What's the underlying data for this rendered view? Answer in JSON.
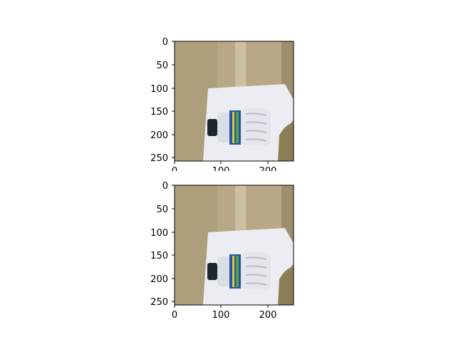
{
  "figure": {
    "panels": [
      {
        "id": "top",
        "x_ticks": [
          "0",
          "100",
          "200"
        ],
        "y_ticks": [
          "0",
          "50",
          "100",
          "150",
          "200",
          "250"
        ]
      },
      {
        "id": "bottom",
        "x_ticks": [
          "0",
          "100",
          "200"
        ],
        "y_ticks": [
          "0",
          "50",
          "100",
          "150",
          "200",
          "250"
        ]
      }
    ],
    "x_tick_values": [
      0,
      100,
      200
    ],
    "y_tick_values": [
      0,
      50,
      100,
      150,
      200,
      250
    ],
    "image_extent": [
      0,
      256
    ],
    "colors": {
      "wall": "#b8aa88",
      "floor_shadow": "#8a7c56",
      "paper": "#eeeef5",
      "bottle_cap": "#1f2530",
      "label_blue": "#1f56a8",
      "label_green": "#4fa04a",
      "label_yellow": "#e0c640",
      "axis": "#000000"
    },
    "icon_semantics": "photo-of-plastic-water-bottle-on-white-paper"
  }
}
